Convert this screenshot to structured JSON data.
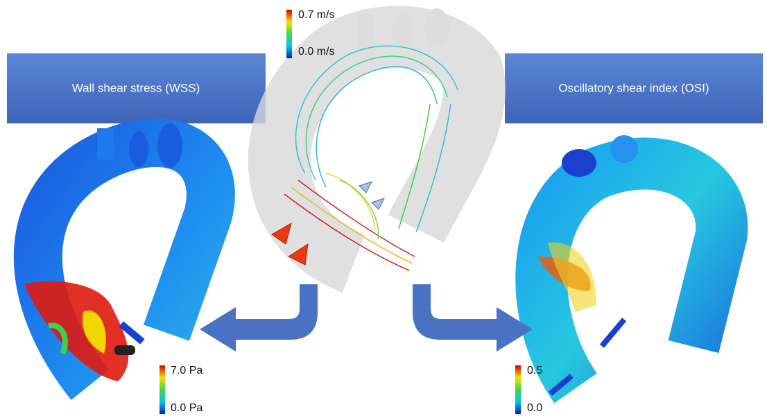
{
  "center": {
    "colorbar": {
      "max": "0.7 m/s",
      "min": "0.0 m/s"
    }
  },
  "left_panel": {
    "title": "Wall shear stress (WSS)",
    "colorbar": {
      "max": "7.0 Pa",
      "min": "0.0 Pa"
    }
  },
  "right_panel": {
    "title": "Oscillatory shear index (OSI)",
    "colorbar": {
      "max": "0.5",
      "min": "0.0"
    }
  }
}
